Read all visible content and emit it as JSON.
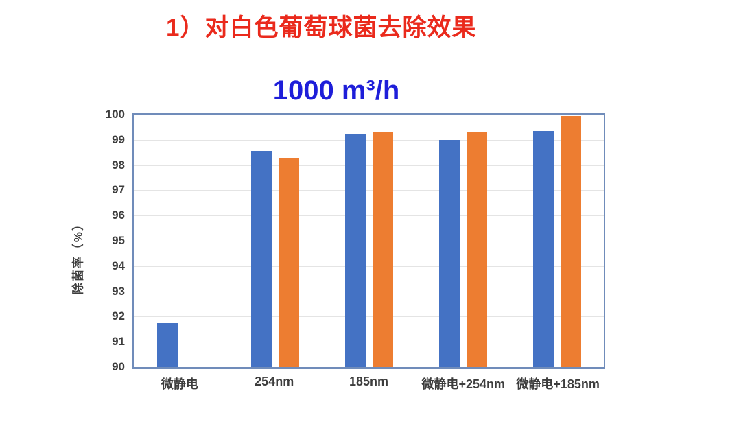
{
  "page": {
    "main_title": "1）对白色葡萄球菌去除效果",
    "main_title_color": "#EA2A1C"
  },
  "chart_data": {
    "type": "bar",
    "title": "1000 m³/h",
    "title_color": "#1E1ED9",
    "ylabel": "除菌率（%）",
    "categories": [
      "微静电",
      "254nm",
      "185nm",
      "微静电+254nm",
      "微静电+185nm"
    ],
    "series": [
      {
        "name": "blue-series",
        "color": "#4472C4",
        "values": [
          91.75,
          98.55,
          99.2,
          99.0,
          99.35
        ]
      },
      {
        "name": "orange-series",
        "color": "#ED7D31",
        "values": [
          null,
          98.3,
          99.3,
          99.3,
          99.95
        ]
      }
    ],
    "ylim": [
      90,
      100
    ],
    "ytick_step": 1,
    "grid": true,
    "legend": false,
    "colors": {
      "plot_border": "#708CBA",
      "gridline": "#E4E4E4",
      "axis_text": "#3D3D3D"
    }
  }
}
